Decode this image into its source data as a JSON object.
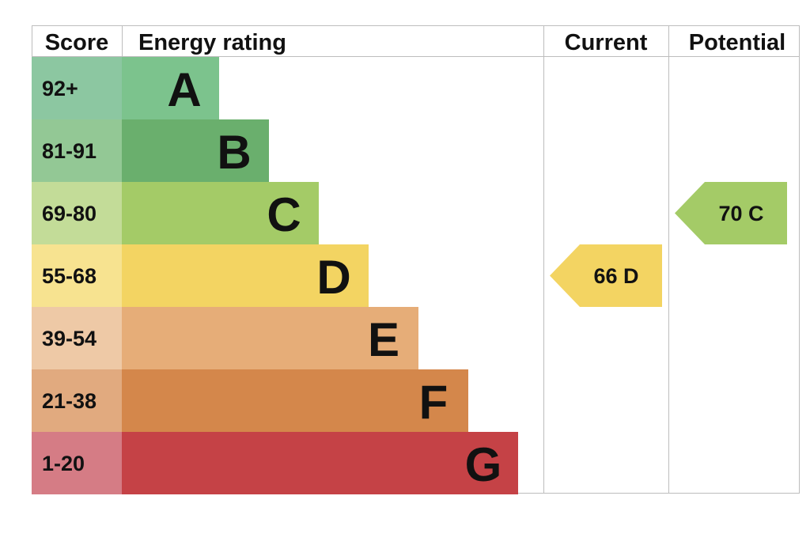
{
  "chart_data": {
    "type": "bar",
    "headers": {
      "score": "Score",
      "rating": "Energy rating",
      "current": "Current",
      "potential": "Potential"
    },
    "bands": [
      {
        "score": "92+",
        "letter": "A",
        "color": "#7cc38d",
        "score_color": "#8cc7a1"
      },
      {
        "score": "81-91",
        "letter": "B",
        "color": "#6aaf6d",
        "score_color": "#93c895"
      },
      {
        "score": "69-80",
        "letter": "C",
        "color": "#a4cb67",
        "score_color": "#c3dc98"
      },
      {
        "score": "55-68",
        "letter": "D",
        "color": "#f3d462",
        "score_color": "#f7e390"
      },
      {
        "score": "39-54",
        "letter": "E",
        "color": "#e6ad78",
        "score_color": "#eec9a6"
      },
      {
        "score": "21-38",
        "letter": "F",
        "color": "#d4874b",
        "score_color": "#e1aa7f"
      },
      {
        "score": "1-20",
        "letter": "G",
        "color": "#c54246",
        "score_color": "#d57c85"
      }
    ],
    "current": {
      "value": 66,
      "letter": "D",
      "label": "66  D",
      "color": "#f3d462"
    },
    "potential": {
      "value": 70,
      "letter": "C",
      "label": "70  C",
      "color": "#a4cb67"
    }
  }
}
